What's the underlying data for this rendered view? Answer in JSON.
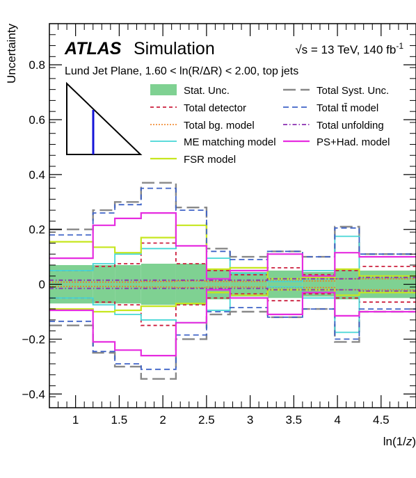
{
  "chart_data": {
    "type": "line",
    "experiment": "ATLAS",
    "experiment_suffix": "Simulation",
    "energy_label": "√s = 13 TeV, 140 fb",
    "energy_sup": "-1",
    "region_label": "Lund Jet Plane, 1.60 < ln(R/ΔR) < 2.00, top jets",
    "ylabel": "Uncertainty",
    "xlabel": "ln(1/z)",
    "xlim": [
      0.7,
      4.9
    ],
    "ylim": [
      -0.45,
      0.95
    ],
    "x_ticks": [
      "1",
      "1.5",
      "2",
      "2.5",
      "3",
      "3.5",
      "4",
      "4.5"
    ],
    "y_ticks": [
      "−0.4",
      "−0.2",
      "0",
      "0.2",
      "0.4",
      "0.6",
      "0.8"
    ],
    "y_tick_values": [
      -0.4,
      -0.2,
      0,
      0.2,
      0.4,
      0.6,
      0.8
    ],
    "x_tick_values": [
      1,
      1.5,
      2,
      2.5,
      3,
      3.5,
      4,
      4.5
    ],
    "bin_edges": [
      0.7,
      1.2,
      1.45,
      1.75,
      2.15,
      2.5,
      2.77,
      3.2,
      3.6,
      3.97,
      4.25,
      4.9
    ],
    "stat_band": {
      "name": "Stat. Unc.",
      "color": "#7fd192",
      "values": [
        0.07,
        0.07,
        0.07,
        0.075,
        0.075,
        0.055,
        0.045,
        0.05,
        0.045,
        0.055,
        0.05
      ]
    },
    "series": [
      {
        "name": "Total Syst. Unc.",
        "color": "#888888",
        "dash": "18,7",
        "width": 2.4,
        "up": [
          0.2,
          0.27,
          0.3,
          0.37,
          0.28,
          0.13,
          0.1,
          0.12,
          0.1,
          0.21,
          0.11
        ],
        "down": [
          -0.15,
          -0.25,
          -0.3,
          -0.345,
          -0.2,
          -0.11,
          -0.1,
          -0.12,
          -0.09,
          -0.21,
          -0.1
        ]
      },
      {
        "name": "Total detector",
        "color": "#cc1f3d",
        "dash": "5,4",
        "width": 1.8,
        "up": [
          0.05,
          0.065,
          0.075,
          0.15,
          0.075,
          0.05,
          0.035,
          0.06,
          0.035,
          0.05,
          0.065
        ],
        "down": [
          -0.05,
          -0.065,
          -0.075,
          -0.15,
          -0.075,
          -0.05,
          -0.035,
          -0.06,
          -0.035,
          -0.05,
          -0.065
        ]
      },
      {
        "name": "Total bg. model",
        "color": "#f07f1a",
        "dash": "2,2",
        "width": 1.6,
        "up": [
          0.008,
          0.008,
          0.008,
          0.01,
          0.012,
          0.01,
          0.01,
          0.012,
          0.012,
          0.02,
          0.02
        ],
        "down": [
          -0.008,
          -0.008,
          -0.008,
          -0.01,
          -0.012,
          -0.01,
          -0.01,
          -0.012,
          -0.012,
          -0.02,
          -0.02
        ]
      },
      {
        "name": "ME matching model",
        "color": "#45d6d6",
        "dash": "",
        "width": 1.8,
        "up": [
          0.05,
          0.075,
          0.11,
          0.13,
          0.14,
          0.095,
          0.04,
          0.01,
          0.05,
          0.175,
          0.03
        ],
        "down": [
          -0.05,
          -0.075,
          -0.11,
          -0.13,
          -0.14,
          -0.095,
          -0.04,
          -0.01,
          -0.05,
          -0.175,
          -0.03
        ]
      },
      {
        "name": "FSR model",
        "color": "#c6e61f",
        "dash": "",
        "width": 2.2,
        "up": [
          0.155,
          0.135,
          0.115,
          0.17,
          0.215,
          0.055,
          0.06,
          0.02,
          0.025,
          0.055,
          0.03
        ],
        "down": [
          -0.09,
          -0.1,
          -0.095,
          -0.08,
          -0.07,
          -0.03,
          -0.04,
          -0.02,
          -0.02,
          -0.04,
          -0.03
        ]
      },
      {
        "name": "Total tt̄ model",
        "color": "#3f63c7",
        "dash": "8,5",
        "width": 1.8,
        "up": [
          0.18,
          0.26,
          0.29,
          0.35,
          0.27,
          0.12,
          0.09,
          0.12,
          0.1,
          0.205,
          0.11
        ],
        "down": [
          -0.135,
          -0.245,
          -0.29,
          -0.31,
          -0.185,
          -0.1,
          -0.085,
          -0.12,
          -0.09,
          -0.2,
          -0.09
        ]
      },
      {
        "name": "Total unfolding",
        "color": "#8a2fb0",
        "dash": "6,3,1.5,3",
        "width": 1.8,
        "up": [
          0.015,
          0.015,
          0.015,
          0.015,
          0.015,
          0.015,
          0.015,
          0.02,
          0.02,
          0.02,
          0.025
        ],
        "down": [
          -0.015,
          -0.015,
          -0.015,
          -0.015,
          -0.015,
          -0.015,
          -0.015,
          -0.02,
          -0.02,
          -0.02,
          -0.025
        ]
      },
      {
        "name": "PS+Had. model",
        "color": "#e62ce0",
        "dash": "",
        "width": 2.2,
        "up": [
          0.095,
          0.215,
          0.24,
          0.26,
          0.14,
          0.02,
          0.05,
          0.11,
          0.03,
          0.115,
          0.1
        ],
        "down": [
          -0.095,
          -0.21,
          -0.24,
          -0.26,
          -0.14,
          -0.02,
          -0.05,
          -0.11,
          -0.03,
          -0.115,
          -0.1
        ]
      }
    ],
    "legend_order": [
      "Stat. Unc.",
      "Total Syst. Unc.",
      "Total detector",
      "Total tt̄ model",
      "Total bg. model",
      "Total unfolding",
      "ME matching model",
      "PS+Had. model",
      "FSR model"
    ]
  }
}
